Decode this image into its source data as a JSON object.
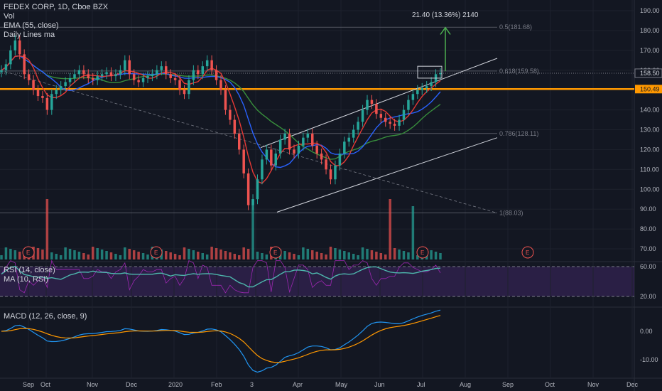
{
  "header": {
    "symbol": "FEDEX CORP, 1D, Cboe BZX",
    "vol": "Vol",
    "ema": "EMA (55, close)",
    "daily": "Daily Lines ma"
  },
  "rsi_panel": {
    "title": "RSI (14, close)",
    "ma": "MA (10, RSI)"
  },
  "macd_panel": {
    "title": "MACD (12, 26, close, 9)"
  },
  "colors": {
    "background": "#131722",
    "up": "#26a69a",
    "down": "#ef5350",
    "ema55": "#2a2e39",
    "ma_red": "#e53935",
    "ma_blue": "#2962ff",
    "ma_green": "#388e3c",
    "orange": "#ff9800",
    "rsi_band": "#2a1f45"
  },
  "annotation": {
    "measure": "21.40 (13.36%) 2140"
  },
  "chart_data": [
    {
      "type": "candlestick",
      "title": "FEDEX CORP, 1D, Cboe BZX",
      "price_axis": [
        "190.00",
        "180.00",
        "170.00",
        "160.00",
        "150.00",
        "140.00",
        "130.00",
        "120.00",
        "110.00",
        "100.00",
        "90.00",
        "80.00",
        "70.00"
      ],
      "time_axis": [
        "Sep",
        "Oct",
        "Nov",
        "Dec",
        "2020",
        "Feb",
        "3",
        "Apr",
        "May",
        "Jun",
        "Jul",
        "Aug",
        "Sep",
        "Oct",
        "Nov",
        "Dec"
      ],
      "ylim": [
        65,
        195
      ],
      "fib_levels": [
        {
          "label": "0.5(181.68)",
          "value": 181.68
        },
        {
          "label": "0.618(159.58)",
          "value": 159.58
        },
        {
          "label": "0.786(128.11)",
          "value": 128.11
        },
        {
          "label": "1(88.03)",
          "value": 88.03
        }
      ],
      "price_tags": [
        {
          "label": "158.50",
          "value": 158.5,
          "color": "#ffffff"
        },
        {
          "label": "150.49",
          "value": 150.49,
          "color": "#ff9800"
        }
      ],
      "horizontal_line": 150.49,
      "closes": [
        160,
        163,
        170,
        175,
        168,
        158,
        155,
        150,
        147,
        146,
        140,
        148,
        150,
        152,
        154,
        156,
        158,
        160,
        158,
        156,
        155,
        157,
        158,
        159,
        157,
        158,
        160,
        165,
        158,
        155,
        154,
        156,
        157,
        158,
        160,
        162,
        158,
        156,
        155,
        150,
        148,
        155,
        160,
        158,
        162,
        165,
        160,
        155,
        150,
        140,
        135,
        128,
        120,
        108,
        92,
        95,
        105,
        115,
        120,
        112,
        118,
        125,
        128,
        120,
        118,
        122,
        126,
        128,
        122,
        118,
        115,
        110,
        105,
        112,
        118,
        124,
        126,
        130,
        134,
        140,
        145,
        143,
        138,
        136,
        134,
        133,
        132,
        135,
        140,
        145,
        148,
        150,
        151,
        152,
        154,
        158,
        158.5
      ],
      "earnings_markers": [
        "E",
        "E",
        "E",
        "E",
        "E"
      ]
    },
    {
      "type": "line",
      "title": "RSI (14, close)",
      "price_axis": [
        "60.00",
        "20.00"
      ],
      "series": [
        {
          "name": "RSI (14, close)"
        },
        {
          "name": "MA (10, RSI)"
        }
      ]
    },
    {
      "type": "line",
      "title": "MACD (12, 26, close, 9)",
      "price_axis": [
        "0.00",
        "-10.00"
      ]
    }
  ]
}
